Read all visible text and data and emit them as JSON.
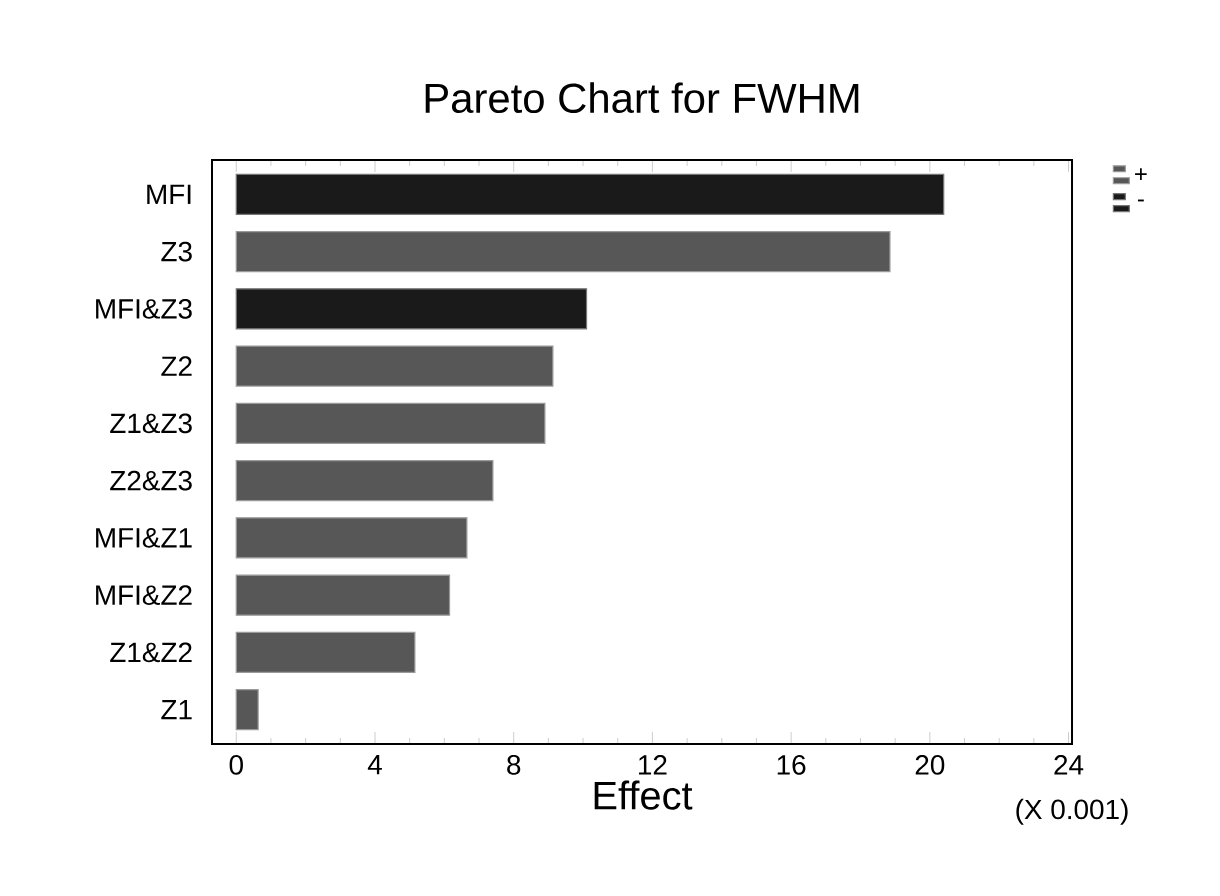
{
  "chart_data": {
    "type": "bar",
    "orientation": "horizontal",
    "title": "Pareto Chart for FWHM",
    "xlabel": "Effect",
    "categories": [
      "MFI",
      "Z3",
      "MFI&Z3",
      "Z2",
      "Z1&Z3",
      "Z2&Z3",
      "MFI&Z1",
      "MFI&Z2",
      "Z1&Z2",
      "Z1"
    ],
    "series": [
      {
        "name": "+",
        "color": "#575757",
        "values": [
          null,
          18.85,
          null,
          9.13,
          8.9,
          7.4,
          6.65,
          6.15,
          5.15,
          0.63
        ]
      },
      {
        "name": "-",
        "color": "#1a1a1a",
        "values": [
          20.4,
          null,
          10.1,
          null,
          null,
          null,
          null,
          null,
          null,
          null
        ]
      }
    ],
    "xlim": [
      -0.7,
      24.1
    ],
    "xticks": [
      0,
      4,
      8,
      12,
      16,
      20,
      24
    ],
    "legend": "top right",
    "grid": false,
    "annotations": [
      "(X 0.001)"
    ]
  }
}
